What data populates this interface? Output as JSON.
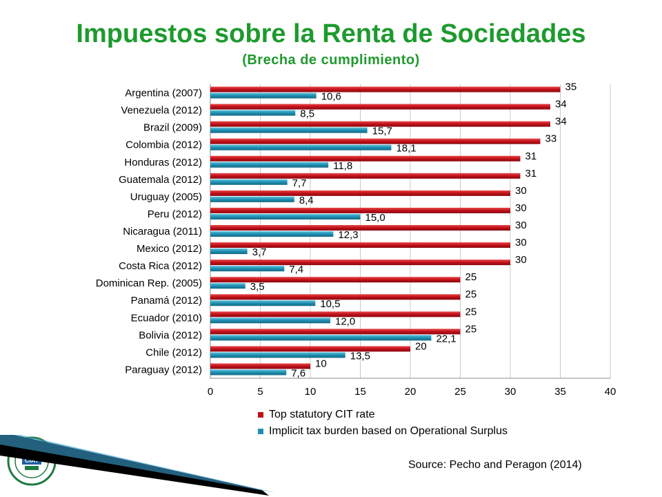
{
  "header": {
    "title": "Impuestos sobre la Renta de Sociedades",
    "subtitle": "(Brecha de cumplimiento)"
  },
  "source": "Source: Pecho and Peragon (2014)",
  "logo": {
    "icon": "ciat-seal-icon",
    "text": "CIAT"
  },
  "colors": {
    "title": "#1e9a2e",
    "series_red": "#c0101a",
    "series_blue": "#1f8fb0"
  },
  "chart_data": {
    "type": "bar",
    "orientation": "horizontal",
    "categories": [
      "Argentina (2007)",
      "Venezuela (2012)",
      "Brazil (2009)",
      "Colombia (2012)",
      "Honduras (2012)",
      "Guatemala (2012)",
      "Uruguay (2005)",
      "Peru (2012)",
      "Nicaragua (2011)",
      "Mexico (2012)",
      "Costa Rica (2012)",
      "Dominican Rep. (2005)",
      "Panamá (2012)",
      "Ecuador (2010)",
      "Bolivia (2012)",
      "Chile (2012)",
      "Paraguay (2012)"
    ],
    "series": [
      {
        "name": "Top statutory CIT rate",
        "color": "#c0101a",
        "values": [
          35,
          34,
          34,
          33,
          31,
          31,
          30,
          30,
          30,
          30,
          30,
          25,
          25,
          25,
          25,
          20,
          10
        ],
        "labels": [
          "35",
          "34",
          "34",
          "33",
          "31",
          "31",
          "30",
          "30",
          "30",
          "30",
          "30",
          "25",
          "25",
          "25",
          "25",
          "20",
          "10"
        ]
      },
      {
        "name": "Implicit tax burden based on Operational Surplus",
        "color": "#1f8fb0",
        "values": [
          10.6,
          8.5,
          15.7,
          18.1,
          11.8,
          7.7,
          8.4,
          15.0,
          12.3,
          3.7,
          7.4,
          3.5,
          10.5,
          12.0,
          22.1,
          13.5,
          7.6
        ],
        "labels": [
          "10,6",
          "8,5",
          "15,7",
          "18,1",
          "11,8",
          "7,7",
          "8,4",
          "15,0",
          "12,3",
          "3,7",
          "7,4",
          "3,5",
          "10,5",
          "12,0",
          "22,1",
          "13,5",
          "7,6"
        ]
      }
    ],
    "xlim": [
      0,
      40
    ],
    "xticks": [
      0,
      5,
      10,
      15,
      20,
      25,
      30,
      35,
      40
    ],
    "grid": "vertical",
    "legend_position": "bottom"
  }
}
